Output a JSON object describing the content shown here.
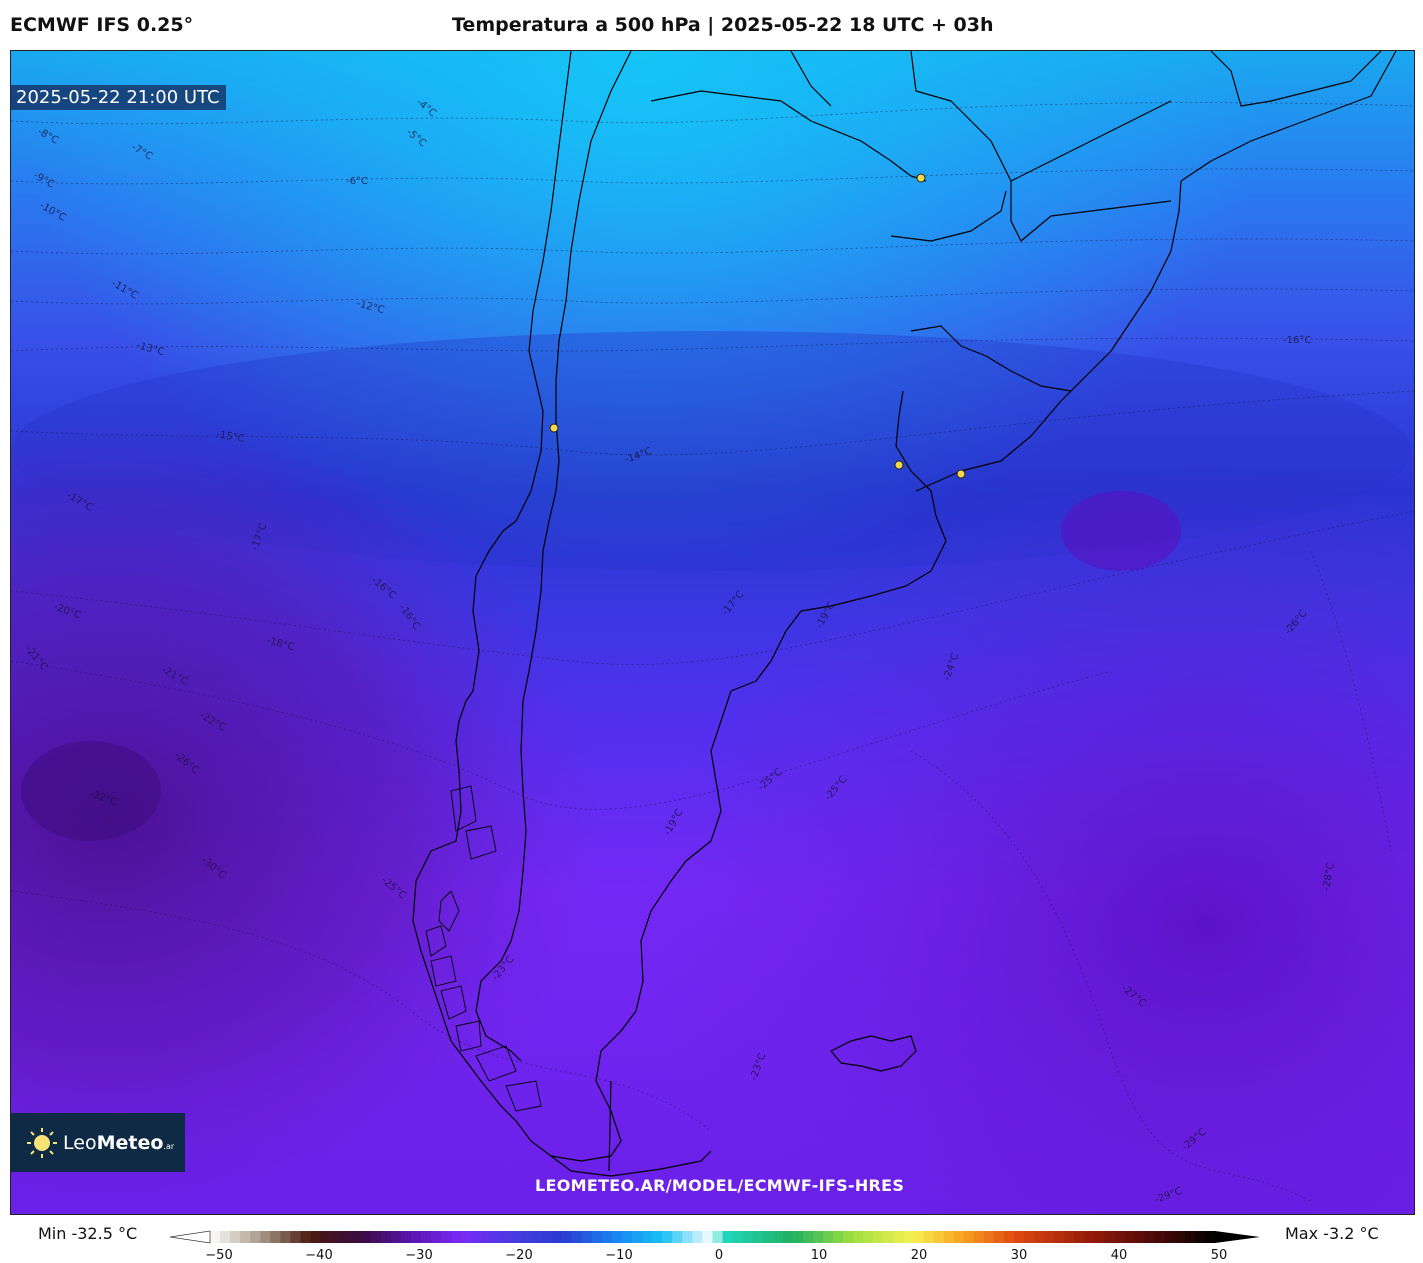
{
  "header": {
    "model": "ECMWF IFS 0.25°",
    "title": "Temperatura a 500 hPa | 2025-05-22 18 UTC + 03h"
  },
  "map": {
    "valid_time": "2025-05-22 21:00 UTC",
    "watermark": "LEOMETEO.AR/MODEL/ECMWF-IFS-HRES",
    "contour_labels": [
      "-4°C",
      "-5°C",
      "-6°C",
      "-7°C",
      "-8°C",
      "-9°C",
      "-10°C",
      "-11°C",
      "-12°C",
      "-13°C",
      "-14°C",
      "-15°C",
      "-16°C",
      "-16°C",
      "-16°C",
      "-17°C",
      "-17°C",
      "-17°C",
      "-18°C",
      "-19°C",
      "-19°C",
      "-20°C",
      "-21°C",
      "-21°C",
      "-22°C",
      "-23°C",
      "-23°C",
      "-24°C",
      "-25°C",
      "-25°C",
      "-25°C",
      "-26°C",
      "-26°C",
      "-27°C",
      "-28°C",
      "-29°C",
      "-29°C",
      "-30°C",
      "-32°C"
    ],
    "city_markers": 4,
    "colors": {
      "north": "#1ab8f5",
      "mid": "#2a36d8",
      "south": "#7a2af5",
      "far_south": "#5a16c8",
      "dark_pocket": "#4a1090",
      "coast": "#000000",
      "marker": "#f2d84a"
    }
  },
  "logo": {
    "brand_light": "Leo",
    "brand_bold": "Meteo",
    "suffix": ".ar"
  },
  "legend": {
    "min_label": "Min -32.5 °C",
    "max_label": "Max -3.2 °C",
    "ticks": [
      "−50",
      "−40",
      "−30",
      "−20",
      "−10",
      "0",
      "10",
      "20",
      "30",
      "40",
      "50"
    ],
    "range": [
      -50,
      50
    ],
    "stops": [
      {
        "v": -50,
        "c": "#ffffff"
      },
      {
        "v": -45,
        "c": "#a89a8a"
      },
      {
        "v": -40,
        "c": "#4a1a10"
      },
      {
        "v": -35,
        "c": "#3a0a40"
      },
      {
        "v": -30,
        "c": "#5a14b0"
      },
      {
        "v": -25,
        "c": "#7a2af5"
      },
      {
        "v": -20,
        "c": "#4a3ae0"
      },
      {
        "v": -15,
        "c": "#2a3ad0"
      },
      {
        "v": -10,
        "c": "#1a80f0"
      },
      {
        "v": -5,
        "c": "#18c0f5"
      },
      {
        "v": 0,
        "c": "#ffffff"
      },
      {
        "v": 1,
        "c": "#20d8c0"
      },
      {
        "v": 8,
        "c": "#20b060"
      },
      {
        "v": 14,
        "c": "#a0e040"
      },
      {
        "v": 20,
        "c": "#f8f050"
      },
      {
        "v": 25,
        "c": "#f8a020"
      },
      {
        "v": 30,
        "c": "#e04a10"
      },
      {
        "v": 38,
        "c": "#901808"
      },
      {
        "v": 45,
        "c": "#400808"
      },
      {
        "v": 50,
        "c": "#000000"
      }
    ]
  }
}
